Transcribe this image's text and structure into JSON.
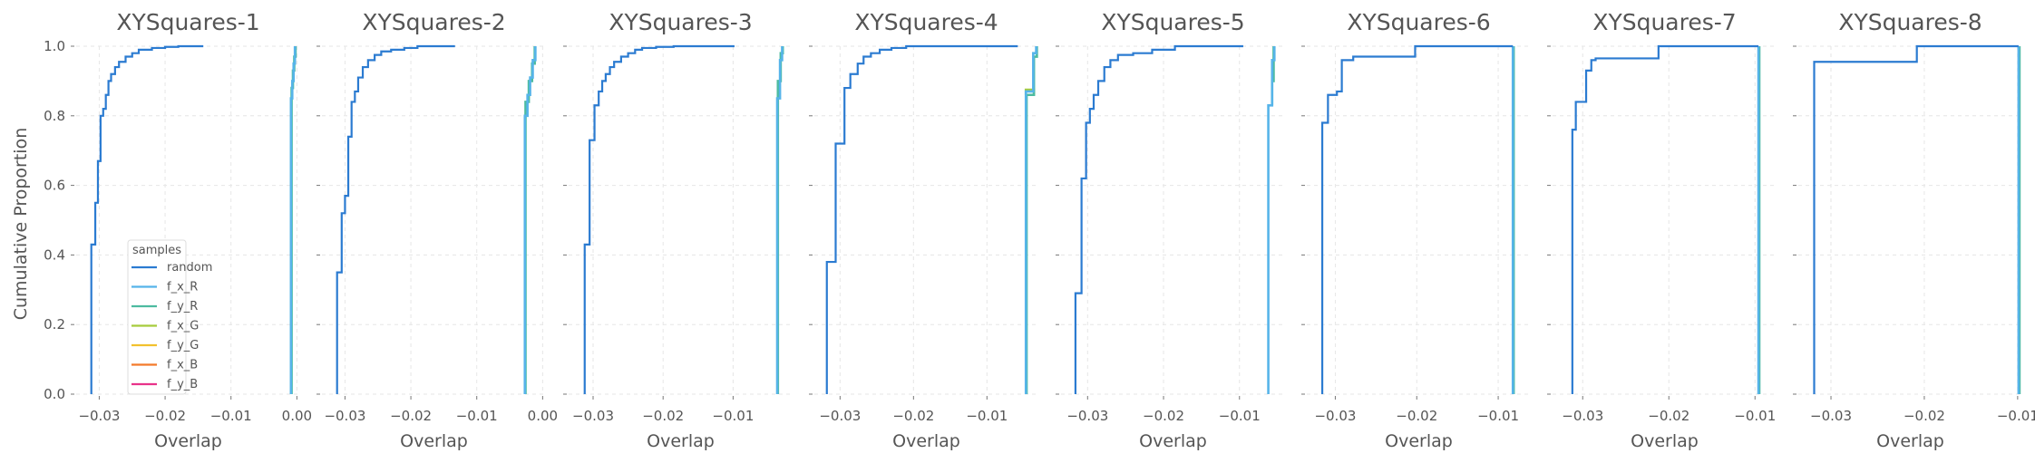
{
  "figure": {
    "ylabel": "Cumulative Proportion",
    "xlabel": "Overlap"
  },
  "legend": {
    "title": "samples",
    "entries": [
      {
        "label": "random",
        "color": "#2b7bd1"
      },
      {
        "label": "f_x_R",
        "color": "#56b4e9"
      },
      {
        "label": "f_y_R",
        "color": "#4dbba0"
      },
      {
        "label": "f_x_G",
        "color": "#a6cc3c"
      },
      {
        "label": "f_y_G",
        "color": "#f2c12e"
      },
      {
        "label": "f_x_B",
        "color": "#f47a2a"
      },
      {
        "label": "f_y_B",
        "color": "#e8338a"
      }
    ]
  },
  "chart_data": [
    {
      "type": "line",
      "title": "XYSquares-1",
      "xlabel": "Overlap",
      "ylabel": "Cumulative Proportion",
      "xlim": [
        -0.0335,
        0.0005
      ],
      "ylim": [
        0,
        1
      ],
      "xticks": [
        -0.03,
        -0.02,
        -0.01,
        0.0
      ],
      "xtick_labels": [
        "−0.03",
        "−0.02",
        "−0.01",
        "0.00"
      ],
      "yticks": [
        0,
        0.2,
        0.4,
        0.6,
        0.8,
        1.0
      ],
      "ytick_labels": [
        "0.0",
        "0.2",
        "0.4",
        "0.6",
        "0.8",
        "1.0"
      ],
      "show_yticklabels": true,
      "show_legend": true,
      "series": [
        {
          "name": "random",
          "color": "#2b7bd1",
          "x": [
            -0.0312,
            -0.0312,
            -0.0306,
            -0.0306,
            -0.0302,
            -0.0302,
            -0.0298,
            -0.0298,
            -0.0294,
            -0.0294,
            -0.029,
            -0.029,
            -0.0286,
            -0.0286,
            -0.0282,
            -0.0282,
            -0.0276,
            -0.0276,
            -0.027,
            -0.027,
            -0.026,
            -0.026,
            -0.025,
            -0.025,
            -0.024,
            -0.024,
            -0.022,
            -0.022,
            -0.02,
            -0.02,
            -0.018,
            -0.018,
            -0.0142
          ],
          "y": [
            0,
            0.43,
            0.43,
            0.55,
            0.55,
            0.67,
            0.67,
            0.8,
            0.8,
            0.82,
            0.82,
            0.86,
            0.86,
            0.9,
            0.9,
            0.92,
            0.92,
            0.94,
            0.94,
            0.955,
            0.955,
            0.97,
            0.97,
            0.98,
            0.98,
            0.99,
            0.99,
            0.995,
            0.995,
            0.998,
            0.998,
            1.0,
            1.0
          ]
        },
        {
          "name": "f_x_R",
          "color": "#56b4e9",
          "x": [
            -0.0009,
            -0.0009,
            -0.0007,
            -0.0007,
            -0.0005,
            -0.0005,
            -0.0003,
            -0.0003
          ],
          "y": [
            0,
            0.85,
            0.85,
            0.9,
            0.9,
            0.95,
            0.95,
            1.0
          ]
        },
        {
          "name": "f_y_R",
          "color": "#4dbba0",
          "x": [
            -0.0008,
            -0.0008,
            -0.0006,
            -0.0006,
            -0.0004,
            -0.0004,
            -0.0002,
            -0.0002
          ],
          "y": [
            0,
            0.88,
            0.88,
            0.93,
            0.93,
            0.97,
            0.97,
            1.0
          ]
        }
      ]
    },
    {
      "type": "line",
      "title": "XYSquares-2",
      "xlabel": "Overlap",
      "xlim": [
        -0.0335,
        0.0005
      ],
      "ylim": [
        0,
        1
      ],
      "xticks": [
        -0.03,
        -0.02,
        -0.01,
        0.0
      ],
      "xtick_labels": [
        "−0.03",
        "−0.02",
        "−0.01",
        "0.00"
      ],
      "yticks": [
        0,
        0.2,
        0.4,
        0.6,
        0.8,
        1.0
      ],
      "show_yticklabels": false,
      "show_legend": false,
      "series": [
        {
          "name": "random",
          "color": "#2b7bd1",
          "x": [
            -0.0312,
            -0.0312,
            -0.0305,
            -0.0305,
            -0.03,
            -0.03,
            -0.0295,
            -0.0295,
            -0.029,
            -0.029,
            -0.0285,
            -0.0285,
            -0.028,
            -0.028,
            -0.0273,
            -0.0273,
            -0.0265,
            -0.0265,
            -0.0255,
            -0.0255,
            -0.0245,
            -0.0245,
            -0.023,
            -0.023,
            -0.021,
            -0.021,
            -0.019,
            -0.019,
            -0.0133
          ],
          "y": [
            0,
            0.35,
            0.35,
            0.52,
            0.52,
            0.57,
            0.57,
            0.74,
            0.74,
            0.84,
            0.84,
            0.87,
            0.87,
            0.91,
            0.91,
            0.94,
            0.94,
            0.96,
            0.96,
            0.975,
            0.975,
            0.985,
            0.985,
            0.99,
            0.99,
            0.995,
            0.995,
            1.0,
            1.0
          ]
        },
        {
          "name": "f_x_R",
          "color": "#56b4e9",
          "x": [
            -0.0027,
            -0.0027,
            -0.0023,
            -0.0023,
            -0.0019,
            -0.0019,
            -0.0015,
            -0.0015,
            -0.0011,
            -0.0011
          ],
          "y": [
            0,
            0.8,
            0.8,
            0.86,
            0.86,
            0.91,
            0.91,
            0.96,
            0.96,
            1.0
          ]
        },
        {
          "name": "f_y_R",
          "color": "#4dbba0",
          "x": [
            -0.0026,
            -0.0026,
            -0.0021,
            -0.0021,
            -0.0016,
            -0.0016,
            -0.0012,
            -0.0012
          ],
          "y": [
            0,
            0.84,
            0.84,
            0.9,
            0.9,
            0.95,
            0.95,
            1.0
          ]
        }
      ]
    },
    {
      "type": "line",
      "title": "XYSquares-3",
      "xlabel": "Overlap",
      "xlim": [
        -0.0335,
        -0.0015
      ],
      "ylim": [
        0,
        1
      ],
      "xticks": [
        -0.03,
        -0.02,
        -0.01
      ],
      "xtick_labels": [
        "−0.03",
        "−0.02",
        "−0.01"
      ],
      "yticks": [
        0,
        0.2,
        0.4,
        0.6,
        0.8,
        1.0
      ],
      "show_yticklabels": false,
      "show_legend": false,
      "series": [
        {
          "name": "random",
          "color": "#2b7bd1",
          "x": [
            -0.0312,
            -0.0312,
            -0.0305,
            -0.0305,
            -0.0298,
            -0.0298,
            -0.0292,
            -0.0292,
            -0.0287,
            -0.0287,
            -0.0282,
            -0.0282,
            -0.0276,
            -0.0276,
            -0.027,
            -0.027,
            -0.026,
            -0.026,
            -0.025,
            -0.025,
            -0.024,
            -0.024,
            -0.023,
            -0.023,
            -0.021,
            -0.021,
            -0.0185,
            -0.0185,
            -0.0098
          ],
          "y": [
            0,
            0.43,
            0.43,
            0.73,
            0.73,
            0.83,
            0.83,
            0.87,
            0.87,
            0.9,
            0.9,
            0.92,
            0.92,
            0.94,
            0.94,
            0.955,
            0.955,
            0.97,
            0.97,
            0.98,
            0.98,
            0.99,
            0.99,
            0.995,
            0.995,
            0.998,
            0.998,
            1.0,
            1.0
          ]
        },
        {
          "name": "f_x_R",
          "color": "#56b4e9",
          "x": [
            -0.0037,
            -0.0037,
            -0.0033,
            -0.0033,
            -0.003,
            -0.003
          ],
          "y": [
            0,
            0.85,
            0.85,
            0.96,
            0.96,
            1.0
          ]
        },
        {
          "name": "f_y_R",
          "color": "#4dbba0",
          "x": [
            -0.0036,
            -0.0036,
            -0.0032,
            -0.0032,
            -0.0029,
            -0.0029
          ],
          "y": [
            0,
            0.9,
            0.9,
            0.98,
            0.98,
            1.0
          ]
        }
      ]
    },
    {
      "type": "line",
      "title": "XYSquares-4",
      "xlabel": "Overlap",
      "xlim": [
        -0.0335,
        -0.003
      ],
      "ylim": [
        0,
        1
      ],
      "xticks": [
        -0.03,
        -0.02,
        -0.01
      ],
      "xtick_labels": [
        "−0.03",
        "−0.02",
        "−0.01"
      ],
      "yticks": [
        0,
        0.2,
        0.4,
        0.6,
        0.8,
        1.0
      ],
      "show_yticklabels": false,
      "show_legend": false,
      "series": [
        {
          "name": "random",
          "color": "#2b7bd1",
          "x": [
            -0.0318,
            -0.0318,
            -0.0306,
            -0.0306,
            -0.0294,
            -0.0294,
            -0.0286,
            -0.0286,
            -0.0276,
            -0.0276,
            -0.0268,
            -0.0268,
            -0.0258,
            -0.0258,
            -0.0246,
            -0.0246,
            -0.023,
            -0.023,
            -0.021,
            -0.021,
            -0.0058
          ],
          "y": [
            0,
            0.38,
            0.38,
            0.72,
            0.72,
            0.88,
            0.88,
            0.92,
            0.92,
            0.95,
            0.95,
            0.97,
            0.97,
            0.98,
            0.98,
            0.99,
            0.99,
            0.995,
            0.995,
            1.0,
            1.0
          ]
        },
        {
          "name": "f_x_R",
          "color": "#56b4e9",
          "x": [
            -0.0047,
            -0.0047,
            -0.0037,
            -0.0037,
            -0.0033,
            -0.0033
          ],
          "y": [
            0,
            0.87,
            0.87,
            0.98,
            0.98,
            1.0
          ]
        },
        {
          "name": "f_y_R",
          "color": "#4dbba0",
          "x": [
            -0.0046,
            -0.0046,
            -0.0036,
            -0.0036,
            -0.0032,
            -0.0032
          ],
          "y": [
            0,
            0.86,
            0.86,
            0.97,
            0.97,
            1.0
          ]
        },
        {
          "name": "f_x_G",
          "color": "#a6cc3c",
          "x": [
            -0.0047,
            -0.0047,
            -0.0036,
            -0.0036
          ],
          "y": [
            0.86,
            0.875,
            0.875,
            0.86
          ]
        }
      ]
    },
    {
      "type": "line",
      "title": "XYSquares-5",
      "xlabel": "Overlap",
      "xlim": [
        -0.0335,
        -0.004
      ],
      "ylim": [
        0,
        1
      ],
      "xticks": [
        -0.03,
        -0.02,
        -0.01
      ],
      "xtick_labels": [
        "−0.03",
        "−0.02",
        "−0.01"
      ],
      "yticks": [
        0,
        0.2,
        0.4,
        0.6,
        0.8,
        1.0
      ],
      "show_yticklabels": false,
      "show_legend": false,
      "series": [
        {
          "name": "random",
          "color": "#2b7bd1",
          "x": [
            -0.0316,
            -0.0316,
            -0.0308,
            -0.0308,
            -0.0302,
            -0.0302,
            -0.0297,
            -0.0297,
            -0.0292,
            -0.0292,
            -0.0286,
            -0.0286,
            -0.0278,
            -0.0278,
            -0.027,
            -0.027,
            -0.026,
            -0.026,
            -0.024,
            -0.024,
            -0.0215,
            -0.0215,
            -0.0185,
            -0.0185,
            -0.0095
          ],
          "y": [
            0,
            0.29,
            0.29,
            0.62,
            0.62,
            0.78,
            0.78,
            0.82,
            0.82,
            0.86,
            0.86,
            0.9,
            0.9,
            0.94,
            0.94,
            0.96,
            0.96,
            0.975,
            0.975,
            0.98,
            0.98,
            0.99,
            0.99,
            1.0,
            1.0
          ]
        },
        {
          "name": "f_x_R",
          "color": "#56b4e9",
          "x": [
            -0.0062,
            -0.0062,
            -0.0057,
            -0.0057,
            -0.0054,
            -0.0054
          ],
          "y": [
            0,
            0.83,
            0.83,
            0.96,
            0.96,
            1.0
          ]
        },
        {
          "name": "f_y_R",
          "color": "#4dbba0",
          "x": [
            -0.0057,
            -0.0057,
            -0.0055,
            -0.0055
          ],
          "y": [
            0.83,
            0.9,
            0.9,
            1.0
          ]
        }
      ]
    },
    {
      "type": "line",
      "title": "XYSquares-6",
      "xlabel": "Overlap",
      "xlim": [
        -0.0335,
        -0.006
      ],
      "ylim": [
        0,
        1
      ],
      "xticks": [
        -0.03,
        -0.02,
        -0.01
      ],
      "xtick_labels": [
        "−0.03",
        "−0.02",
        "−0.01"
      ],
      "yticks": [
        0,
        0.2,
        0.4,
        0.6,
        0.8,
        1.0
      ],
      "show_yticklabels": false,
      "show_legend": false,
      "series": [
        {
          "name": "random",
          "color": "#2b7bd1",
          "x": [
            -0.0316,
            -0.0316,
            -0.0309,
            -0.0309,
            -0.0298,
            -0.0298,
            -0.0292,
            -0.0292,
            -0.0278,
            -0.0278,
            -0.0202,
            -0.0202,
            -0.0082
          ],
          "y": [
            0,
            0.78,
            0.78,
            0.86,
            0.86,
            0.87,
            0.87,
            0.96,
            0.96,
            0.97,
            0.97,
            1.0,
            1.0
          ]
        },
        {
          "name": "f_x_R",
          "color": "#56b4e9",
          "x": [
            -0.0082,
            -0.0082
          ],
          "y": [
            0,
            1.0
          ]
        },
        {
          "name": "f_y_R",
          "color": "#4dbba0",
          "x": [
            -0.0081,
            -0.0081
          ],
          "y": [
            0,
            1.0
          ]
        }
      ]
    },
    {
      "type": "line",
      "title": "XYSquares-7",
      "xlabel": "Overlap",
      "xlim": [
        -0.0335,
        -0.0075
      ],
      "ylim": [
        0,
        1
      ],
      "xticks": [
        -0.03,
        -0.02,
        -0.01
      ],
      "xtick_labels": [
        "−0.03",
        "−0.02",
        "−0.01"
      ],
      "yticks": [
        0,
        0.2,
        0.4,
        0.6,
        0.8,
        1.0
      ],
      "show_yticklabels": false,
      "show_legend": false,
      "series": [
        {
          "name": "random",
          "color": "#2b7bd1",
          "x": [
            -0.0312,
            -0.0312,
            -0.0308,
            -0.0308,
            -0.0296,
            -0.0296,
            -0.029,
            -0.029,
            -0.0285,
            -0.0285,
            -0.0212,
            -0.0212,
            -0.0096
          ],
          "y": [
            0,
            0.76,
            0.76,
            0.84,
            0.84,
            0.93,
            0.93,
            0.96,
            0.96,
            0.965,
            0.965,
            1.0,
            1.0
          ]
        },
        {
          "name": "f_x_R",
          "color": "#56b4e9",
          "x": [
            -0.0096,
            -0.0096
          ],
          "y": [
            0,
            1.0
          ]
        },
        {
          "name": "f_y_R",
          "color": "#4dbba0",
          "x": [
            -0.0095,
            -0.0095
          ],
          "y": [
            0,
            1.0
          ]
        }
      ]
    },
    {
      "type": "line",
      "title": "XYSquares-8",
      "xlabel": "Overlap",
      "xlim": [
        -0.0335,
        -0.0095
      ],
      "ylim": [
        0,
        1
      ],
      "xticks": [
        -0.03,
        -0.02,
        -0.01
      ],
      "xtick_labels": [
        "−0.03",
        "−0.02",
        "−0.01"
      ],
      "yticks": [
        0,
        0.2,
        0.4,
        0.6,
        0.8,
        1.0
      ],
      "show_yticklabels": false,
      "show_legend": false,
      "series": [
        {
          "name": "random",
          "color": "#2b7bd1",
          "x": [
            -0.0318,
            -0.0318,
            -0.0208,
            -0.0208,
            -0.0099
          ],
          "y": [
            0,
            0.955,
            0.955,
            1.0,
            1.0
          ]
        },
        {
          "name": "f_x_R",
          "color": "#56b4e9",
          "x": [
            -0.0099,
            -0.0099
          ],
          "y": [
            0,
            1.0
          ]
        },
        {
          "name": "f_y_R",
          "color": "#4dbba0",
          "x": [
            -0.0098,
            -0.0098
          ],
          "y": [
            0,
            1.0
          ]
        }
      ]
    }
  ]
}
